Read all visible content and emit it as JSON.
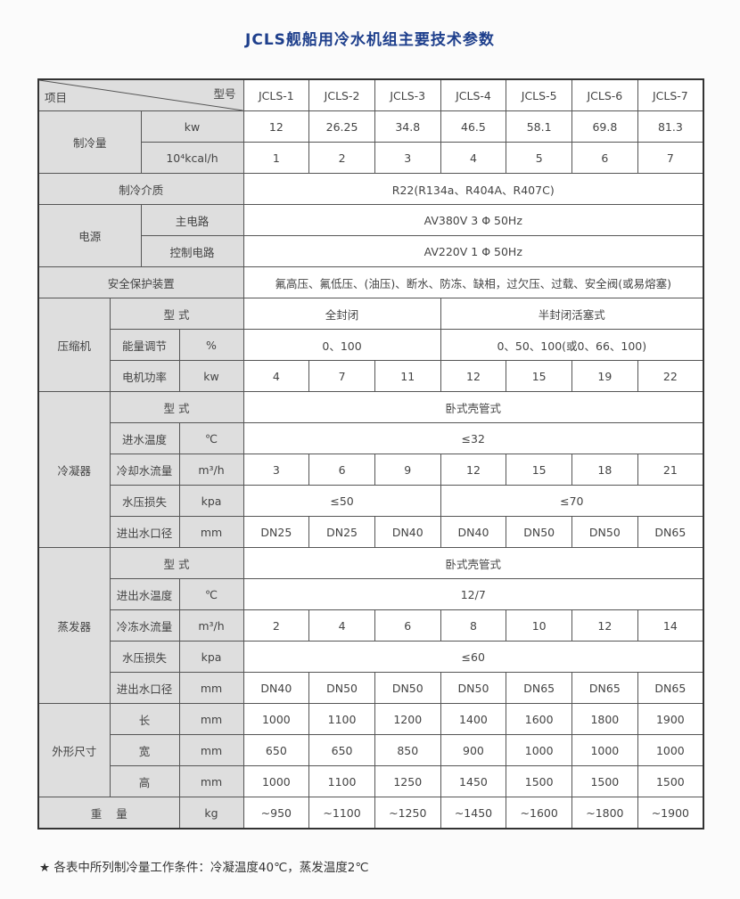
{
  "title": "JCLS舰船用冷水机组主要技术参数",
  "header": {
    "item_label": "项目",
    "model_label": "型号",
    "models": [
      "JCLS-1",
      "JCLS-2",
      "JCLS-3",
      "JCLS-4",
      "JCLS-5",
      "JCLS-6",
      "JCLS-7"
    ]
  },
  "cooling_capacity": {
    "label": "制冷量",
    "kw_unit": "kw",
    "kw": [
      "12",
      "26.25",
      "34.8",
      "46.5",
      "58.1",
      "69.8",
      "81.3"
    ],
    "kcal_unit": "10⁴kcal/h",
    "kcal": [
      "1",
      "2",
      "3",
      "4",
      "5",
      "6",
      "7"
    ]
  },
  "refrigerant": {
    "label": "制冷介质",
    "value": "R22(R134a、R404A、R407C)"
  },
  "power": {
    "label": "电源",
    "main_label": "主电路",
    "main_value": "AV380V 3 Φ 50Hz",
    "control_label": "控制电路",
    "control_value": "AV220V 1 Φ 50Hz"
  },
  "safety": {
    "label": "安全保护装置",
    "value": "氟高压、氟低压、(油压)、断水、防冻、缺相，过欠压、过载、安全阀(或易熔塞)"
  },
  "compressor": {
    "label": "压缩机",
    "type_label": "型 式",
    "type_hermetic": "全封闭",
    "type_semi": "半封闭活塞式",
    "capacity_label": "能量调节",
    "capacity_unit": "%",
    "capacity_hermetic": "0、100",
    "capacity_semi": "0、50、100(或0、66、100)",
    "motor_label": "电机功率",
    "motor_unit": "kw",
    "motor": [
      "4",
      "7",
      "11",
      "12",
      "15",
      "19",
      "22"
    ]
  },
  "condenser": {
    "label": "冷凝器",
    "type_label": "型 式",
    "type_value": "卧式壳管式",
    "inlet_temp_label": "进水温度",
    "inlet_temp_unit": "℃",
    "inlet_temp_value": "≤32",
    "flow_label": "冷却水流量",
    "flow_unit": "m³/h",
    "flow": [
      "3",
      "6",
      "9",
      "12",
      "15",
      "18",
      "21"
    ],
    "pressure_label": "水压损失",
    "pressure_unit": "kpa",
    "pressure_a": "≤50",
    "pressure_b": "≤70",
    "pipe_label": "进出水口径",
    "pipe_unit": "mm",
    "pipe": [
      "DN25",
      "DN25",
      "DN40",
      "DN40",
      "DN50",
      "DN50",
      "DN65"
    ]
  },
  "evaporator": {
    "label": "蒸发器",
    "type_label": "型 式",
    "type_value": "卧式壳管式",
    "temp_label": "进出水温度",
    "temp_unit": "℃",
    "temp_value": "12/7",
    "flow_label": "冷冻水流量",
    "flow_unit": "m³/h",
    "flow": [
      "2",
      "4",
      "6",
      "8",
      "10",
      "12",
      "14"
    ],
    "pressure_label": "水压损失",
    "pressure_unit": "kpa",
    "pressure_value": "≤60",
    "pipe_label": "进出水口径",
    "pipe_unit": "mm",
    "pipe": [
      "DN40",
      "DN50",
      "DN50",
      "DN50",
      "DN65",
      "DN65",
      "DN65"
    ]
  },
  "dimensions": {
    "label": "外形尺寸",
    "length_label": "长",
    "width_label": "宽",
    "height_label": "高",
    "unit": "mm",
    "length": [
      "1000",
      "1100",
      "1200",
      "1400",
      "1600",
      "1800",
      "1900"
    ],
    "width": [
      "650",
      "650",
      "850",
      "900",
      "1000",
      "1000",
      "1000"
    ],
    "height": [
      "1000",
      "1100",
      "1250",
      "1450",
      "1500",
      "1500",
      "1500"
    ]
  },
  "weight": {
    "label": "重    量",
    "unit": "kg",
    "values": [
      "~950",
      "~1100",
      "~1250",
      "~1450",
      "~1600",
      "~1800",
      "~1900"
    ]
  },
  "footnote": "★ 各表中所列制冷量工作条件：冷凝温度40℃，蒸发温度2℃"
}
